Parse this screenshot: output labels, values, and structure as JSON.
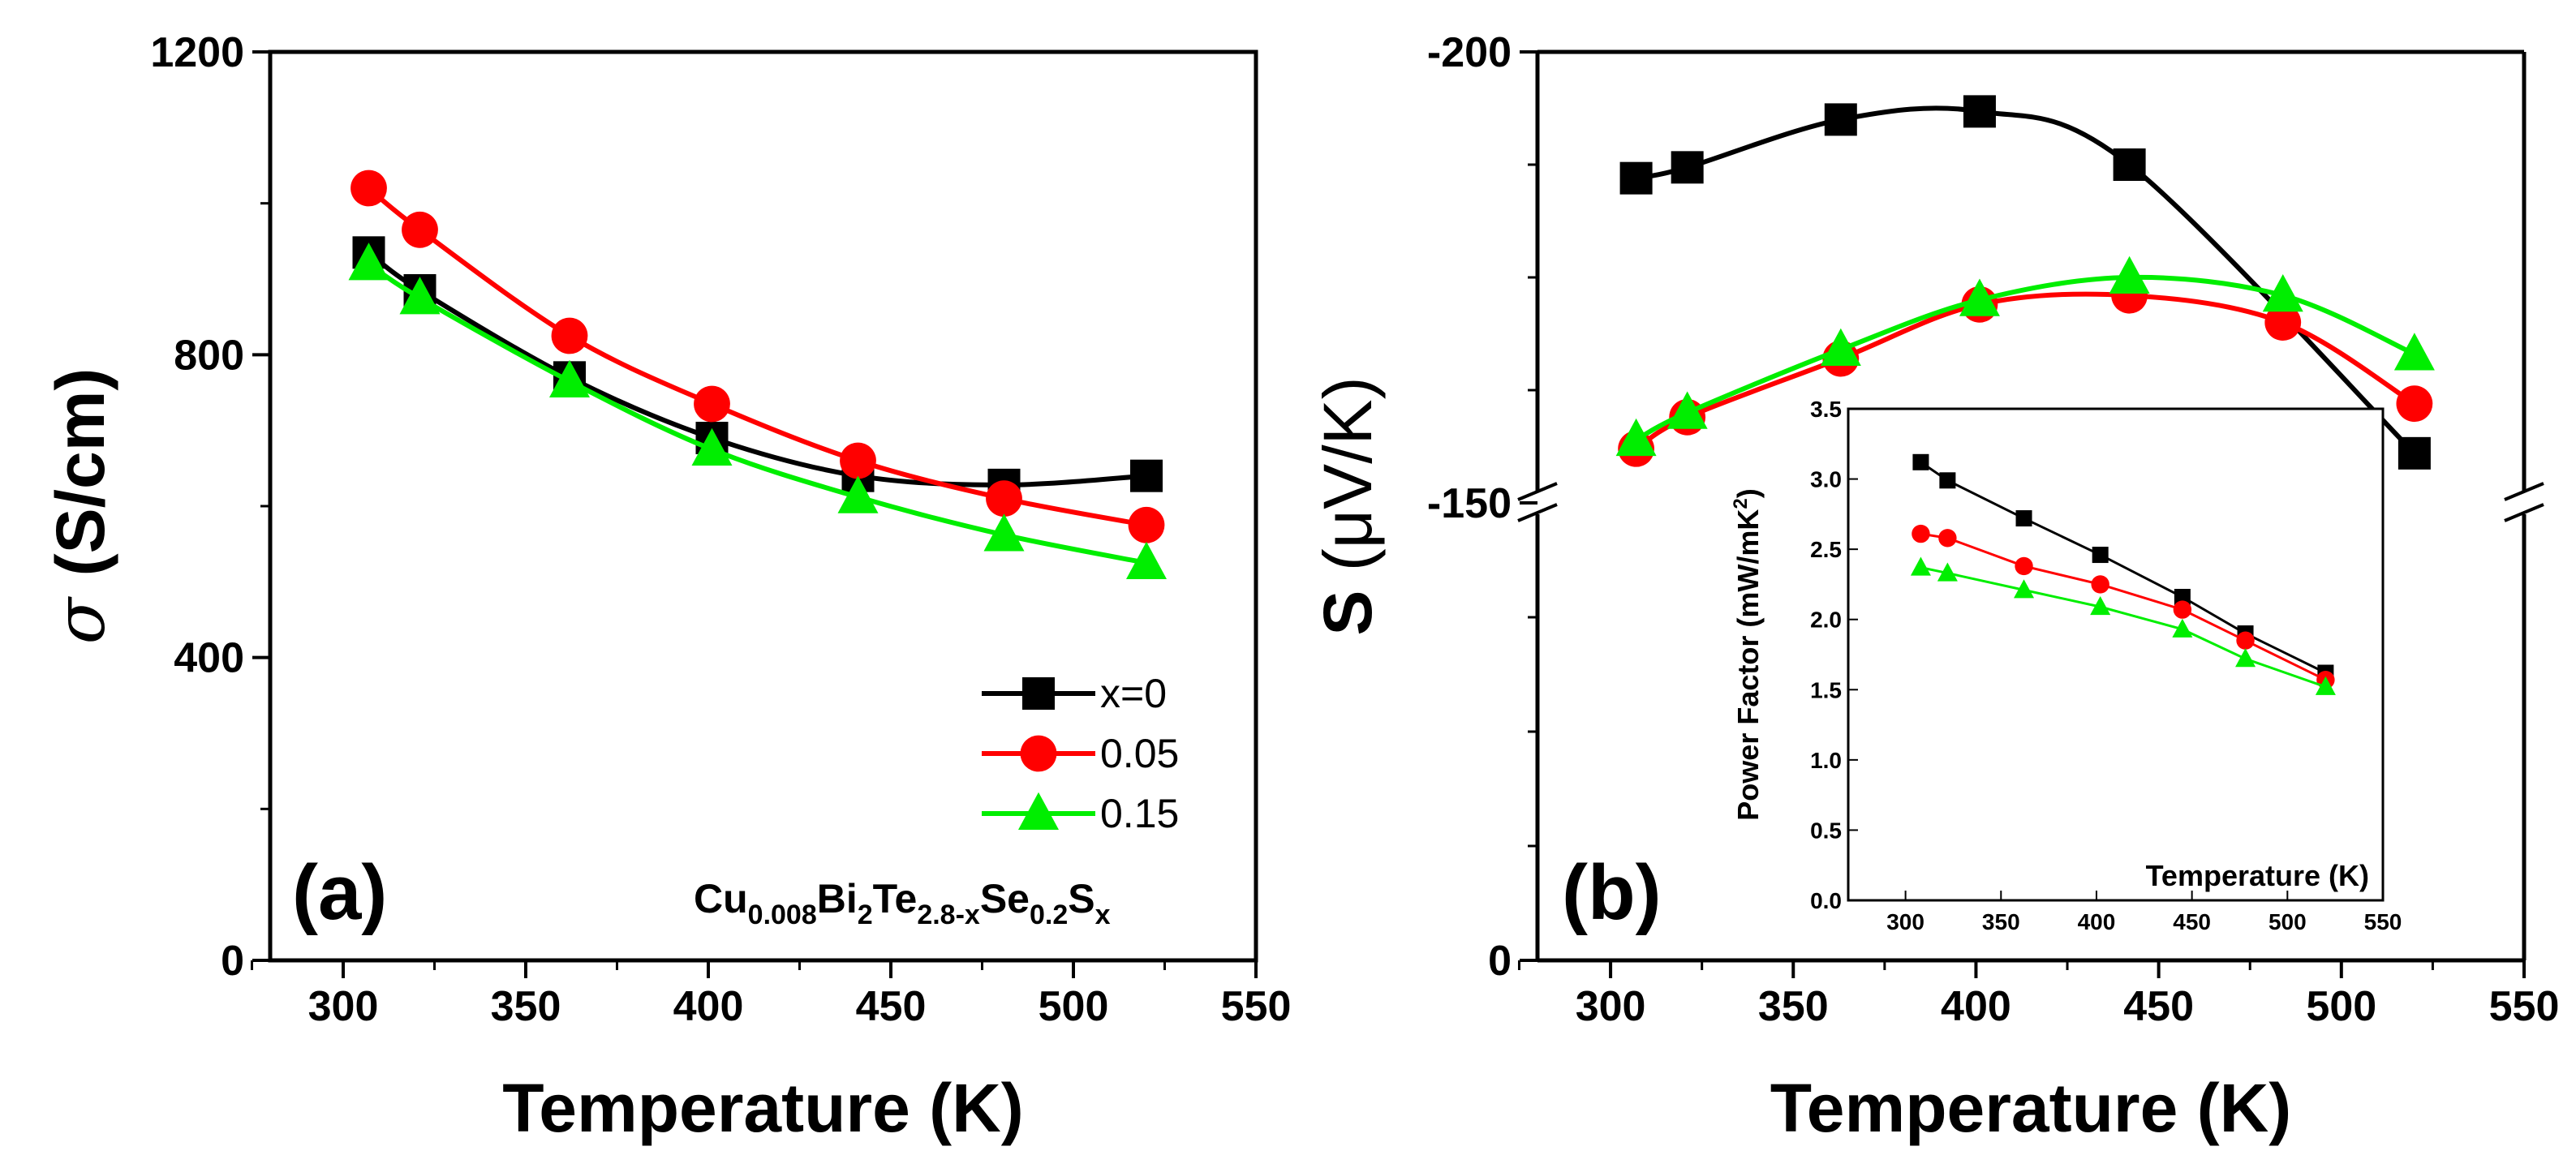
{
  "chart_data": [
    {
      "type": "line",
      "panel_label": "(a)",
      "xlabel": "Temperature (K)",
      "ylabel_symbol": "σ",
      "ylabel_unit": "(S/cm)",
      "xlim": [
        280,
        550
      ],
      "ylim": [
        0,
        1200
      ],
      "xticks": [
        300,
        350,
        400,
        450,
        500,
        550
      ],
      "yticks": [
        0,
        400,
        800,
        1200
      ],
      "legend_position": "bottom-right",
      "formula": {
        "base": "Cu",
        "s1": "0.008",
        "t2": "Bi",
        "s2": "2",
        "t3": "Te",
        "s3": "2.8-x",
        "t4": "Se",
        "s4": "0.2",
        "t5": "S",
        "s5": "x"
      },
      "series": [
        {
          "name": "x=0",
          "color": "#000000",
          "marker": "square",
          "x": [
            307,
            321,
            362,
            401,
            441,
            481,
            520
          ],
          "y": [
            935,
            885,
            770,
            690,
            640,
            628,
            640
          ]
        },
        {
          "name": "0.05",
          "color": "#ff0000",
          "marker": "circle",
          "x": [
            307,
            321,
            362,
            401,
            441,
            481,
            520
          ],
          "y": [
            1020,
            965,
            825,
            735,
            660,
            610,
            575
          ]
        },
        {
          "name": "0.15",
          "color": "#00ee00",
          "marker": "triangle",
          "x": [
            307,
            321,
            362,
            401,
            441,
            481,
            520
          ],
          "y": [
            920,
            875,
            765,
            675,
            612,
            562,
            525
          ]
        }
      ]
    },
    {
      "type": "line",
      "panel_label": "(b)",
      "xlabel": "Temperature (K)",
      "ylabel_symbol": "S",
      "ylabel_unit": "(μV/K)",
      "xlim": [
        280,
        550
      ],
      "xticks": [
        300,
        350,
        400,
        450,
        500,
        550
      ],
      "ytick_labels": [
        "-200",
        "-150",
        "0"
      ],
      "axis_break": true,
      "ylim_upper_segment": [
        -150,
        -200
      ],
      "ylim_lower_segment": [
        0,
        -150
      ],
      "series": [
        {
          "name": "x=0",
          "color": "#000000",
          "marker": "square",
          "x": [
            307,
            321,
            363,
            401,
            442,
            520
          ],
          "y": [
            -186,
            -187.2,
            -192.5,
            -193.4,
            -187.5,
            -155.5
          ]
        },
        {
          "name": "0.05",
          "color": "#ff0000",
          "marker": "circle",
          "x": [
            307,
            321,
            363,
            401,
            442,
            484,
            520
          ],
          "y": [
            -156,
            -159.5,
            -166,
            -172,
            -173,
            -170,
            -161
          ]
        },
        {
          "name": "0.15",
          "color": "#00ee00",
          "marker": "triangle",
          "x": [
            307,
            321,
            363,
            401,
            442,
            484,
            520
          ],
          "y": [
            -157,
            -160,
            -167,
            -172.5,
            -175,
            -173,
            -166.5
          ]
        }
      ],
      "inset": {
        "xlabel": "Temperature (K)",
        "ylabel": "Power Factor (mW/mK",
        "ylabel_sup": "2",
        "ylabel_end": ")",
        "xlim": [
          270,
          550
        ],
        "ylim": [
          0,
          3.5
        ],
        "xticks": [
          300,
          350,
          400,
          450,
          500,
          550
        ],
        "yticks": [
          "0.0",
          "0.5",
          "1.0",
          "1.5",
          "2.0",
          "2.5",
          "3.0",
          "3.5"
        ],
        "series": [
          {
            "name": "x=0",
            "color": "#000000",
            "marker": "square",
            "x": [
              308,
              322,
              362,
              402,
              445,
              478,
              520
            ],
            "y": [
              3.12,
              2.99,
              2.72,
              2.46,
              2.16,
              1.9,
              1.62
            ]
          },
          {
            "name": "0.05",
            "color": "#ff0000",
            "marker": "circle",
            "x": [
              308,
              322,
              362,
              402,
              445,
              478,
              520
            ],
            "y": [
              2.61,
              2.58,
              2.38,
              2.25,
              2.07,
              1.85,
              1.57
            ]
          },
          {
            "name": "0.15",
            "color": "#00ee00",
            "marker": "triangle",
            "x": [
              308,
              322,
              362,
              402,
              445,
              478,
              520
            ],
            "y": [
              2.37,
              2.33,
              2.21,
              2.09,
              1.93,
              1.72,
              1.52
            ]
          }
        ]
      }
    }
  ]
}
